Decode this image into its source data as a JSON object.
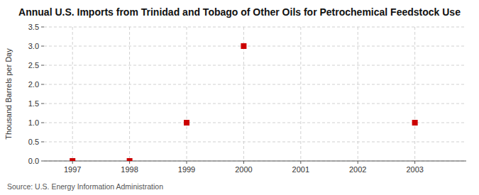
{
  "chart_data": {
    "type": "scatter",
    "title": "Annual U.S. Imports from Trinidad and Tobago of Other Oils for Petrochemical Feedstock Use",
    "y_label": "Thousand Barrels per Day",
    "annotations": [
      "Source: U.S. Energy Information Administration"
    ],
    "x": [
      1997,
      1998,
      1999,
      2000,
      2003
    ],
    "values": [
      0,
      0,
      1,
      3,
      1
    ],
    "color": "#cc0000",
    "marker": "square",
    "xlim": [
      1996.5,
      2003.9
    ],
    "ylim": [
      0,
      3.5
    ],
    "xticks": [
      1997,
      1998,
      1999,
      2000,
      2001,
      2002,
      2003
    ],
    "yticks": [
      {
        "value": 0,
        "label": "0.0"
      },
      0.5,
      {
        "value": 1,
        "label": "1.0"
      },
      1.5,
      {
        "value": 2,
        "label": "2.0"
      },
      2.5,
      {
        "value": 3,
        "label": "3.0"
      },
      3.5
    ],
    "grid": true
  }
}
